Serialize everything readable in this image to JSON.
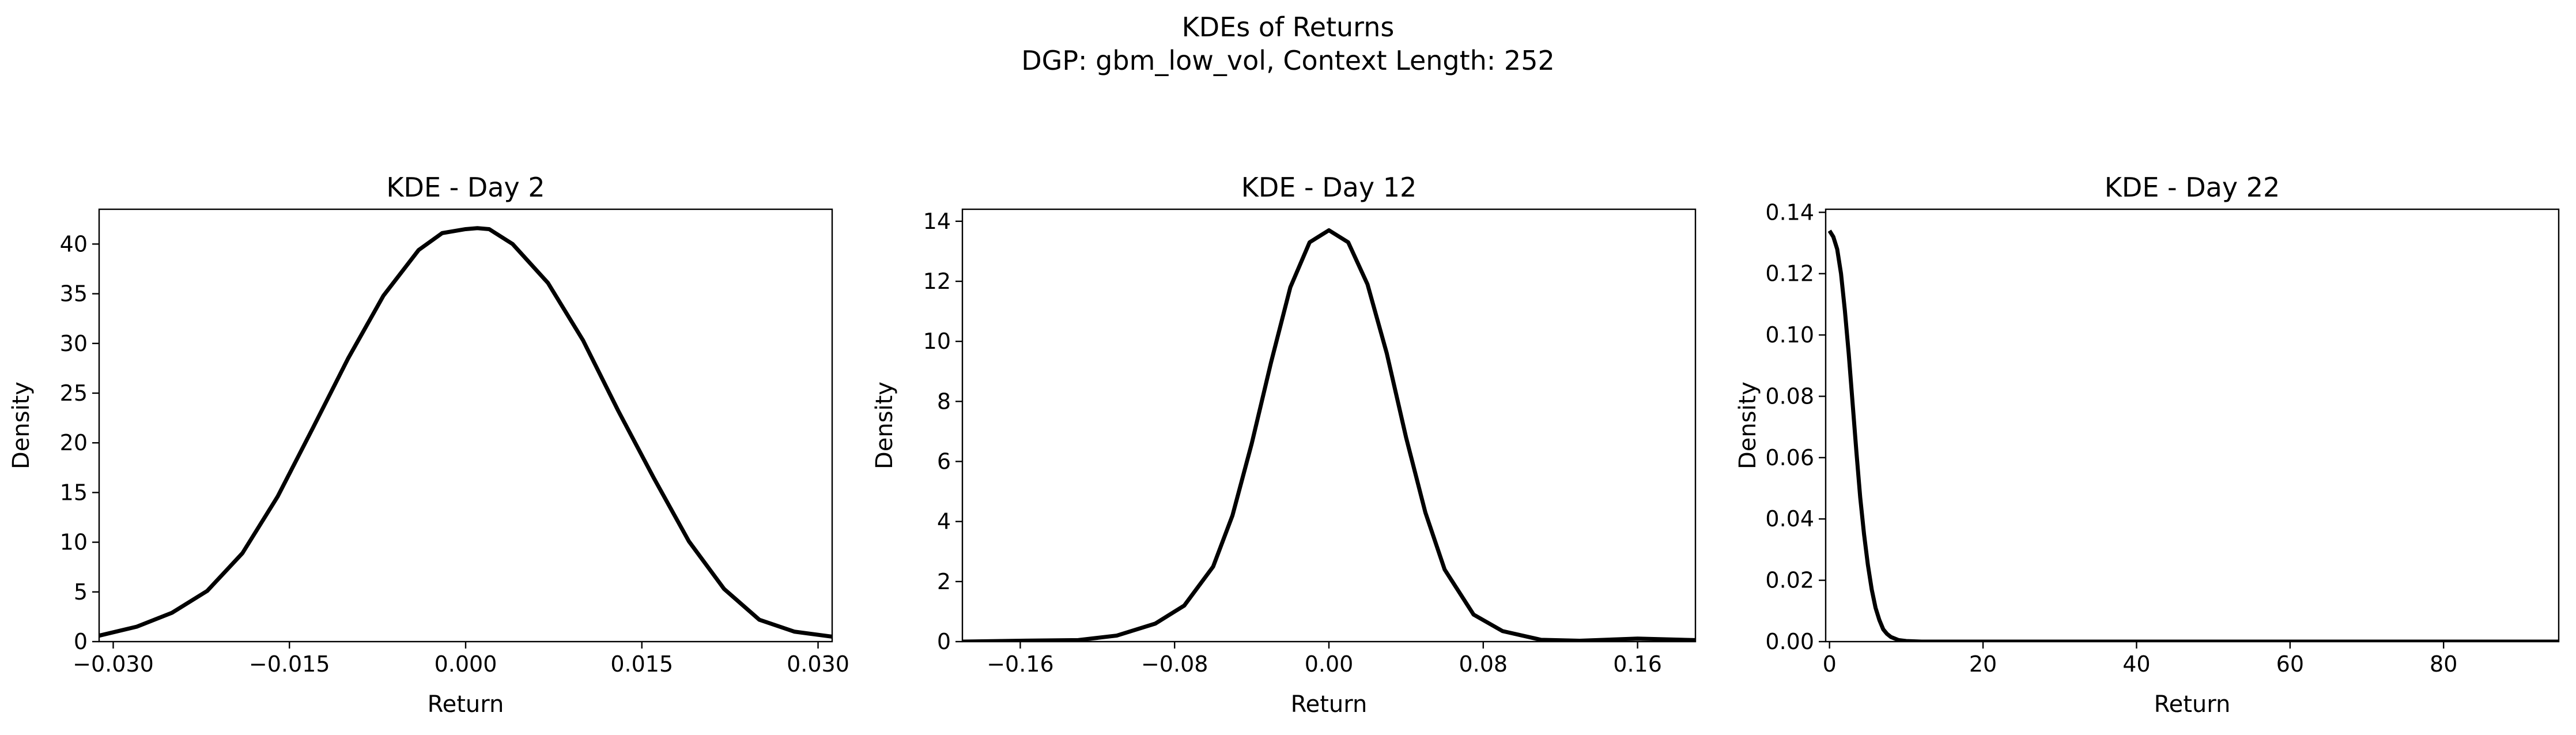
{
  "figure": {
    "suptitle_line1": "KDEs of Returns",
    "suptitle_line2": "DGP: gbm_low_vol, Context Length: 252",
    "line_color": "#000000",
    "axes_color": "#000000"
  },
  "chart_data": [
    {
      "type": "line",
      "title": "KDE - Day 2",
      "xlabel": "Return",
      "ylabel": "Density",
      "xlim": [
        -0.0312,
        0.0312
      ],
      "ylim": [
        0,
        43.5
      ],
      "xticks": [
        -0.03,
        -0.015,
        0.0,
        0.015,
        0.03
      ],
      "xtick_labels": [
        "−0.030",
        "−0.015",
        "0.000",
        "0.015",
        "0.030"
      ],
      "yticks": [
        0,
        5,
        10,
        15,
        20,
        25,
        30,
        35,
        40
      ],
      "ytick_labels": [
        "0",
        "5",
        "10",
        "15",
        "20",
        "25",
        "30",
        "35",
        "40"
      ],
      "grid": false,
      "series": [
        {
          "x": [
            -0.0312,
            -0.028,
            -0.025,
            -0.022,
            -0.019,
            -0.016,
            -0.013,
            -0.01,
            -0.007,
            -0.004,
            -0.002,
            0.0,
            0.001,
            0.002,
            0.004,
            0.007,
            0.01,
            0.013,
            0.016,
            0.019,
            0.022,
            0.025,
            0.028,
            0.0312
          ],
          "y": [
            0.6,
            1.5,
            2.9,
            5.1,
            8.9,
            14.6,
            21.5,
            28.5,
            34.8,
            39.4,
            41.1,
            41.5,
            41.6,
            41.5,
            40.0,
            36.1,
            30.3,
            23.2,
            16.5,
            10.1,
            5.3,
            2.2,
            1.0,
            0.5
          ]
        }
      ]
    },
    {
      "type": "line",
      "title": "KDE - Day 12",
      "xlabel": "Return",
      "ylabel": "Density",
      "xlim": [
        -0.19,
        0.19
      ],
      "ylim": [
        0,
        14.4
      ],
      "xticks": [
        -0.16,
        -0.08,
        0.0,
        0.08,
        0.16
      ],
      "xtick_labels": [
        "−0.16",
        "−0.08",
        "0.00",
        "0.08",
        "0.16"
      ],
      "yticks": [
        0,
        2,
        4,
        6,
        8,
        10,
        12,
        14
      ],
      "ytick_labels": [
        "0",
        "2",
        "4",
        "6",
        "8",
        "10",
        "12",
        "14"
      ],
      "grid": false,
      "series": [
        {
          "x": [
            -0.19,
            -0.16,
            -0.13,
            -0.11,
            -0.09,
            -0.075,
            -0.06,
            -0.05,
            -0.04,
            -0.03,
            -0.02,
            -0.01,
            0.0,
            0.01,
            0.02,
            0.03,
            0.04,
            0.05,
            0.06,
            0.075,
            0.09,
            0.11,
            0.13,
            0.16,
            0.19
          ],
          "y": [
            0.0,
            0.03,
            0.05,
            0.2,
            0.6,
            1.2,
            2.5,
            4.2,
            6.6,
            9.3,
            11.8,
            13.3,
            13.7,
            13.3,
            11.9,
            9.6,
            6.8,
            4.3,
            2.4,
            0.9,
            0.35,
            0.06,
            0.03,
            0.1,
            0.05
          ]
        }
      ]
    },
    {
      "type": "line",
      "title": "KDE - Day 22",
      "xlabel": "Return",
      "ylabel": "Density",
      "xlim": [
        -0.5,
        95
      ],
      "ylim": [
        0,
        0.141
      ],
      "xticks": [
        0,
        20,
        40,
        60,
        80
      ],
      "xtick_labels": [
        "0",
        "20",
        "40",
        "60",
        "80"
      ],
      "yticks": [
        0.0,
        0.02,
        0.04,
        0.06,
        0.08,
        0.1,
        0.12,
        0.14
      ],
      "ytick_labels": [
        "0.00",
        "0.02",
        "0.04",
        "0.06",
        "0.08",
        "0.10",
        "0.12",
        "0.14"
      ],
      "grid": false,
      "series": [
        {
          "x": [
            0.0,
            0.5,
            1.0,
            1.5,
            2.0,
            2.5,
            3.0,
            3.5,
            4.0,
            4.5,
            5.0,
            5.5,
            6.0,
            6.5,
            7.0,
            7.5,
            8.0,
            9.0,
            10.0,
            12.0,
            15.0,
            20.0,
            40.0,
            60.0,
            80.0,
            95.0
          ],
          "y": [
            0.134,
            0.132,
            0.128,
            0.12,
            0.108,
            0.094,
            0.078,
            0.062,
            0.047,
            0.035,
            0.025,
            0.017,
            0.011,
            0.007,
            0.004,
            0.0025,
            0.0015,
            0.0005,
            0.0002,
            0.0,
            0.0,
            0.0,
            0.0,
            0.0,
            0.0,
            0.0
          ]
        }
      ]
    }
  ]
}
